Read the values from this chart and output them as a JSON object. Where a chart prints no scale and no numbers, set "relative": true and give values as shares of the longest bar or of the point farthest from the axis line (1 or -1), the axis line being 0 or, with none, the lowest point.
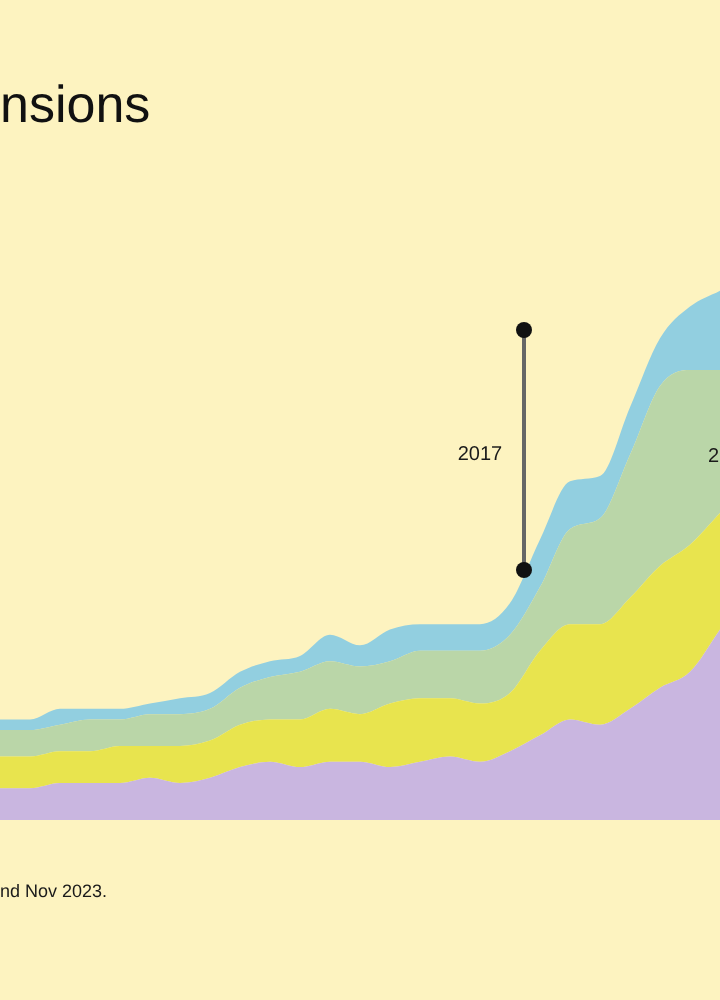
{
  "chart_data": {
    "type": "area",
    "stacked": true,
    "relative": true,
    "title": "nsions",
    "legend": false,
    "categories": [
      null,
      null,
      null,
      null,
      null,
      null,
      null,
      null,
      null,
      null,
      null,
      null,
      null,
      null,
      null,
      null,
      null,
      null,
      null,
      null,
      null,
      null,
      null,
      null,
      null
    ],
    "series": [
      {
        "color": "#c9b6e0",
        "values": [
          0.06,
          0.06,
          0.07,
          0.07,
          0.07,
          0.08,
          0.07,
          0.08,
          0.1,
          0.11,
          0.1,
          0.11,
          0.11,
          0.1,
          0.11,
          0.12,
          0.11,
          0.13,
          0.16,
          0.19,
          0.18,
          0.21,
          0.25,
          0.28,
          0.36
        ]
      },
      {
        "color": "#e8e44e",
        "values": [
          0.06,
          0.06,
          0.06,
          0.06,
          0.07,
          0.06,
          0.07,
          0.07,
          0.08,
          0.08,
          0.09,
          0.1,
          0.09,
          0.12,
          0.12,
          0.11,
          0.11,
          0.11,
          0.16,
          0.18,
          0.19,
          0.21,
          0.23,
          0.24,
          0.22
        ]
      },
      {
        "color": "#bad6a8",
        "values": [
          0.05,
          0.05,
          0.05,
          0.06,
          0.05,
          0.06,
          0.06,
          0.06,
          0.07,
          0.08,
          0.09,
          0.09,
          0.09,
          0.08,
          0.09,
          0.09,
          0.1,
          0.11,
          0.12,
          0.18,
          0.2,
          0.27,
          0.34,
          0.33,
          0.27
        ]
      },
      {
        "color": "#92cfe0",
        "values": [
          0.02,
          0.02,
          0.03,
          0.02,
          0.02,
          0.02,
          0.03,
          0.03,
          0.03,
          0.03,
          0.03,
          0.05,
          0.04,
          0.06,
          0.05,
          0.05,
          0.05,
          0.06,
          0.09,
          0.09,
          0.08,
          0.09,
          0.09,
          0.12,
          0.15
        ]
      }
    ],
    "annotations": [
      "2017",
      "2",
      "nd Nov 2023."
    ]
  }
}
